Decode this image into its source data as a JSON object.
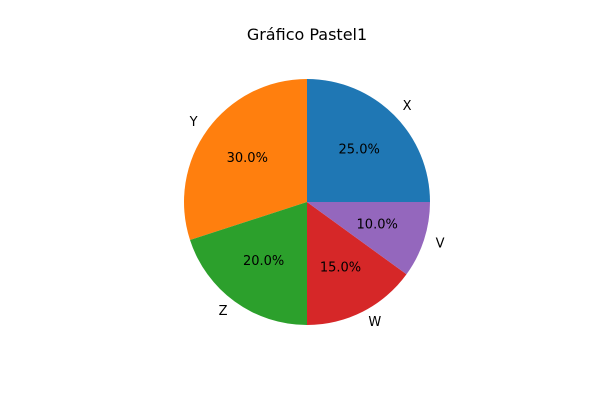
{
  "chart_data": {
    "type": "pie",
    "title": "Gráfico Pastel1",
    "categories": [
      "X",
      "Y",
      "Z",
      "W",
      "V"
    ],
    "values": [
      25,
      30,
      20,
      15,
      10
    ],
    "percent_labels": [
      "25.0%",
      "30.0%",
      "20.0%",
      "15.0%",
      "10.0%"
    ],
    "colors": [
      "#1f77b4",
      "#ff7f0e",
      "#2ca02c",
      "#d62728",
      "#9467bd"
    ],
    "start_angle_deg": 0,
    "direction": "counterclockwise"
  }
}
